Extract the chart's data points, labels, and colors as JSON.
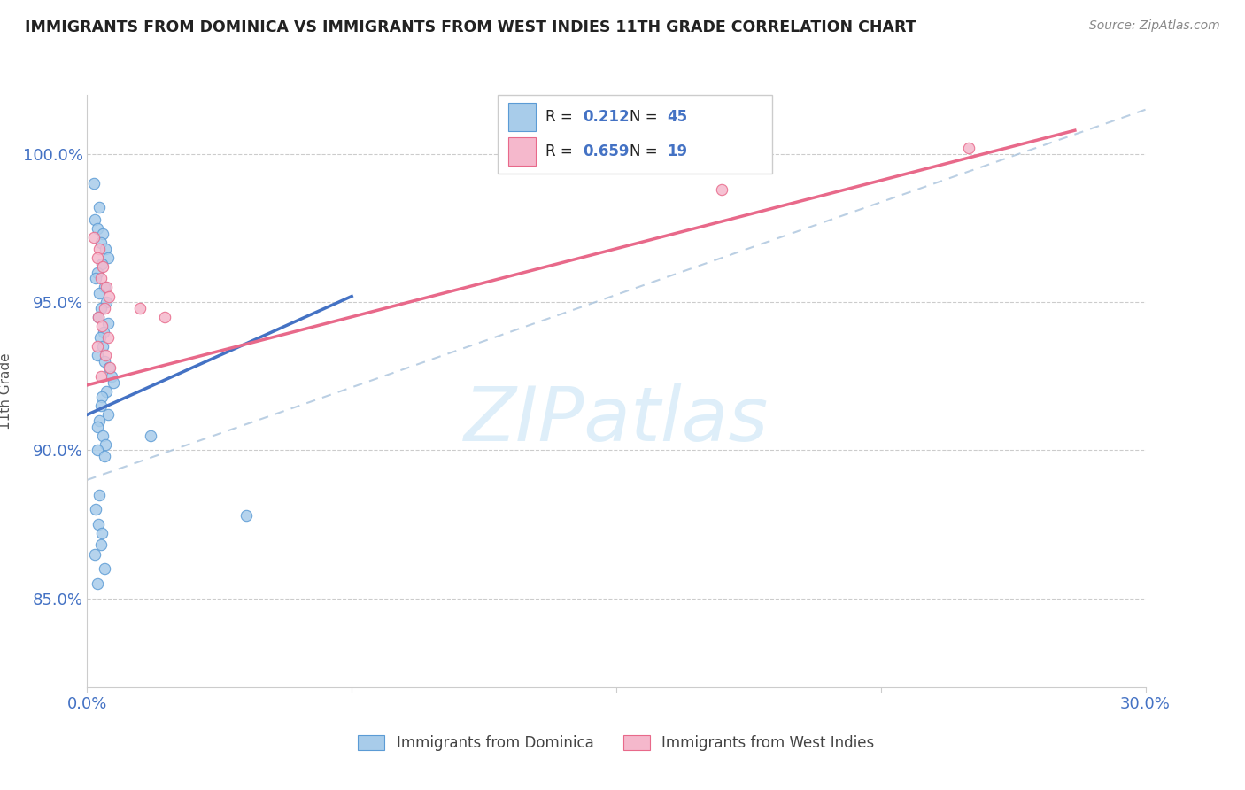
{
  "title": "IMMIGRANTS FROM DOMINICA VS IMMIGRANTS FROM WEST INDIES 11TH GRADE CORRELATION CHART",
  "source": "Source: ZipAtlas.com",
  "legend_label1": "Immigrants from Dominica",
  "legend_label2": "Immigrants from West Indies",
  "R1": "0.212",
  "N1": "45",
  "R2": "0.659",
  "N2": "19",
  "blue_fill": "#a8ccea",
  "blue_edge": "#5b9bd5",
  "pink_fill": "#f5b8cc",
  "pink_edge": "#e8698a",
  "trend_blue": "#4472c4",
  "trend_pink": "#e8698a",
  "ref_line_color": "#aac4dd",
  "grid_color": "#cccccc",
  "watermark_color": "#c8e4f5",
  "ylabel_color": "#555555",
  "tick_color": "#4472c4",
  "title_color": "#222222",
  "source_color": "#888888",
  "legend_text_color": "#222222",
  "legend_val_color": "#4472c4",
  "xlim": [
    0,
    30
  ],
  "ylim": [
    82,
    102
  ],
  "yticks": [
    85,
    90,
    95,
    100
  ],
  "ytick_labels": [
    "85.0%",
    "90.0%",
    "95.0%",
    "100.0%"
  ],
  "blue_x": [
    0.18,
    0.35,
    0.22,
    0.28,
    0.45,
    0.38,
    0.52,
    0.6,
    0.42,
    0.3,
    0.25,
    0.48,
    0.35,
    0.55,
    0.4,
    0.32,
    0.58,
    0.46,
    0.36,
    0.44,
    0.3,
    0.5,
    0.62,
    0.68,
    0.75,
    0.55,
    0.42,
    0.38,
    0.6,
    0.35,
    0.28,
    0.45,
    0.52,
    0.3,
    0.48,
    1.8,
    0.35,
    0.25,
    0.32,
    0.42,
    0.38,
    0.22,
    0.48,
    0.3,
    4.5
  ],
  "blue_y": [
    99.0,
    98.2,
    97.8,
    97.5,
    97.3,
    97.0,
    96.8,
    96.5,
    96.3,
    96.0,
    95.8,
    95.5,
    95.3,
    95.0,
    94.8,
    94.5,
    94.3,
    94.0,
    93.8,
    93.5,
    93.2,
    93.0,
    92.8,
    92.5,
    92.3,
    92.0,
    91.8,
    91.5,
    91.2,
    91.0,
    90.8,
    90.5,
    90.2,
    90.0,
    89.8,
    90.5,
    88.5,
    88.0,
    87.5,
    87.2,
    86.8,
    86.5,
    86.0,
    85.5,
    87.8
  ],
  "pink_x": [
    0.2,
    0.35,
    0.28,
    0.45,
    0.38,
    0.55,
    0.62,
    0.48,
    0.32,
    0.42,
    0.58,
    0.3,
    0.52,
    0.65,
    0.4,
    1.5,
    2.2,
    25.0,
    18.0
  ],
  "pink_y": [
    97.2,
    96.8,
    96.5,
    96.2,
    95.8,
    95.5,
    95.2,
    94.8,
    94.5,
    94.2,
    93.8,
    93.5,
    93.2,
    92.8,
    92.5,
    94.8,
    94.5,
    100.2,
    98.8
  ]
}
